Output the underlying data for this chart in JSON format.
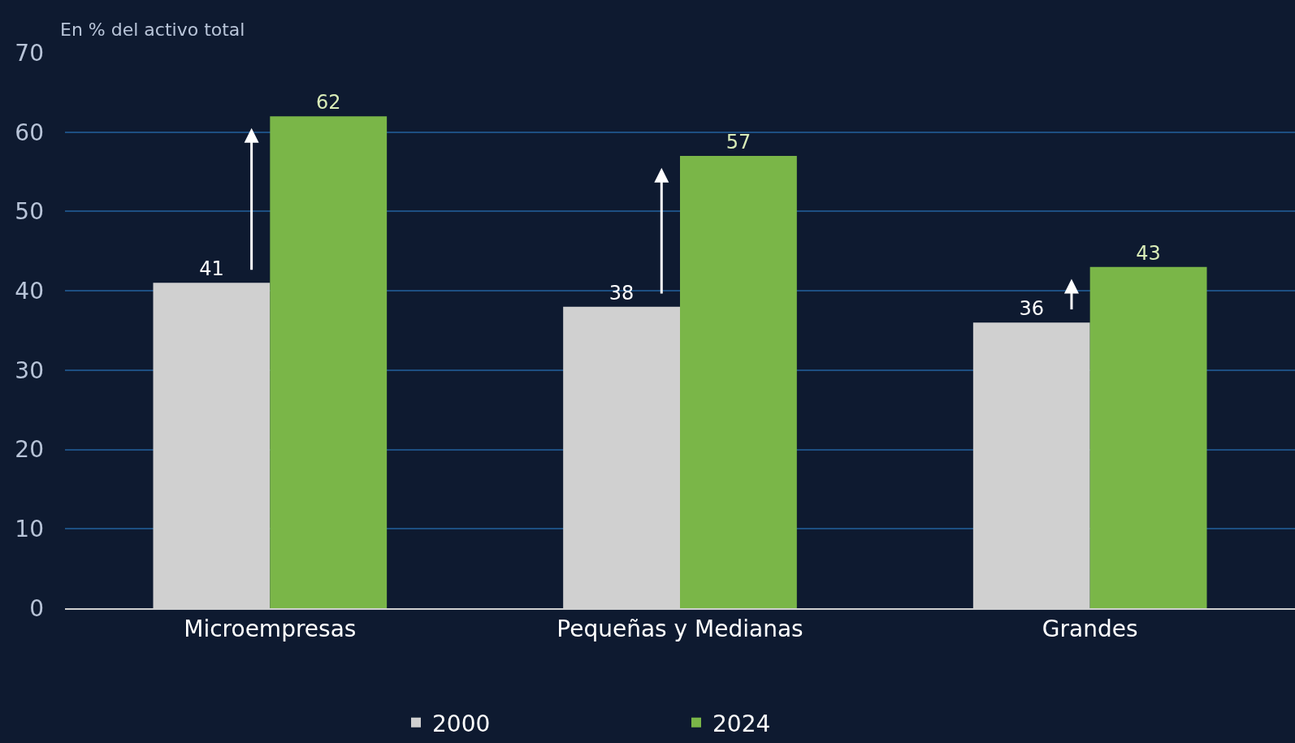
{
  "chart_data": {
    "type": "bar",
    "ylabel": "En % del activo total",
    "categories": [
      "Microempresas",
      "Pequeñas y Medianas",
      "Grandes"
    ],
    "series": [
      {
        "name": "2000",
        "color": "#d0d0d0",
        "values": [
          41,
          38,
          36
        ]
      },
      {
        "name": "2024",
        "color": "#7ab648",
        "values": [
          62,
          57,
          43
        ]
      }
    ],
    "ylim": [
      0,
      70
    ],
    "yticks": [
      0,
      10,
      20,
      30,
      40,
      50,
      60,
      70
    ],
    "grid": "y",
    "legend": "bottom",
    "data_labels": true
  }
}
